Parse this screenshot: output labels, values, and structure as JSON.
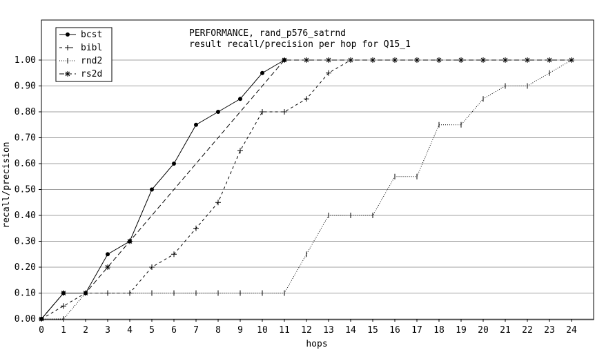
{
  "chart_data": {
    "type": "line",
    "title": "PERFORMANCE, rand_p576_satrnd",
    "subtitle": "result recall/precision per hop for Q15_1",
    "xlabel": "hops",
    "ylabel": "recall/precision",
    "xlim": [
      0,
      24
    ],
    "ylim": [
      0,
      1
    ],
    "x_ticks": [
      0,
      1,
      2,
      3,
      4,
      5,
      6,
      7,
      8,
      9,
      10,
      11,
      12,
      13,
      14,
      15,
      16,
      17,
      18,
      19,
      20,
      21,
      22,
      23,
      24
    ],
    "y_ticks": [
      "0.00",
      "0.10",
      "0.20",
      "0.30",
      "0.40",
      "0.50",
      "0.60",
      "0.70",
      "0.80",
      "0.90",
      "1.00"
    ],
    "grid": "horizontal",
    "legend_position": "top-left",
    "series": [
      {
        "name": "bcst",
        "dash": "",
        "marker": "dot",
        "x": [
          0,
          1,
          2,
          3,
          4,
          5,
          6,
          7,
          8,
          9,
          10,
          11
        ],
        "y": [
          0.0,
          0.1,
          0.1,
          0.25,
          0.3,
          0.5,
          0.6,
          0.75,
          0.8,
          0.85,
          0.95,
          1.0
        ]
      },
      {
        "name": "bibl",
        "dash": "4,4",
        "marker": "plus",
        "x": [
          0,
          1,
          2,
          3,
          4,
          5,
          6,
          7,
          8,
          9,
          10,
          11,
          12,
          13,
          14
        ],
        "y": [
          0.0,
          0.05,
          0.1,
          0.1,
          0.1,
          0.2,
          0.25,
          0.35,
          0.45,
          0.65,
          0.8,
          0.8,
          0.85,
          0.95,
          1.0
        ]
      },
      {
        "name": "rnd2",
        "dash": "1,2",
        "marker": "tick",
        "x": [
          0,
          1,
          2,
          3,
          4,
          5,
          6,
          7,
          8,
          9,
          10,
          11,
          12,
          13,
          14,
          15,
          16,
          17,
          18,
          19,
          20,
          21,
          22,
          23,
          24
        ],
        "y": [
          0.0,
          0.0,
          0.1,
          0.1,
          0.1,
          0.1,
          0.1,
          0.1,
          0.1,
          0.1,
          0.1,
          0.1,
          0.25,
          0.4,
          0.4,
          0.4,
          0.55,
          0.55,
          0.75,
          0.75,
          0.85,
          0.9,
          0.9,
          0.95,
          1.0
        ]
      },
      {
        "name": "rs2d",
        "dash": "7,4",
        "marker": "star",
        "x": [
          0,
          1,
          2,
          3,
          4,
          11,
          12,
          13,
          14,
          15,
          16,
          17,
          18,
          19,
          20,
          21,
          22,
          23,
          24
        ],
        "y": [
          0.0,
          0.1,
          0.1,
          0.2,
          0.3,
          1.0,
          1.0,
          1.0,
          1.0,
          1.0,
          1.0,
          1.0,
          1.0,
          1.0,
          1.0,
          1.0,
          1.0,
          1.0,
          1.0
        ]
      }
    ]
  }
}
